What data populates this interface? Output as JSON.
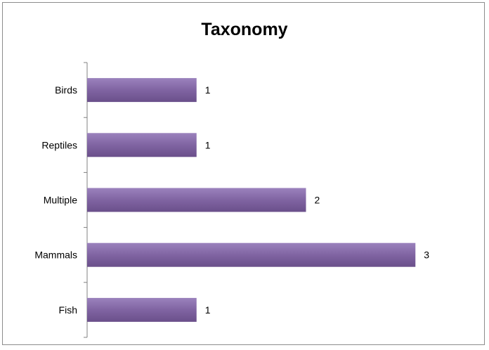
{
  "chart_data": {
    "type": "bar",
    "orientation": "horizontal",
    "title": "Taxonomy",
    "categories": [
      "Birds",
      "Reptiles",
      "Multiple",
      "Mammals",
      "Fish"
    ],
    "values": [
      1,
      1,
      2,
      3,
      1
    ],
    "data_labels": [
      "1",
      "1",
      "2",
      "3",
      "1"
    ],
    "xlim": [
      0,
      3.3
    ],
    "grid": false,
    "legend": "none",
    "colors": {
      "bar": "#8064a2",
      "bar_light": "#9b82bd",
      "bar_dark": "#6a4f8a",
      "axis": "#808080"
    }
  }
}
